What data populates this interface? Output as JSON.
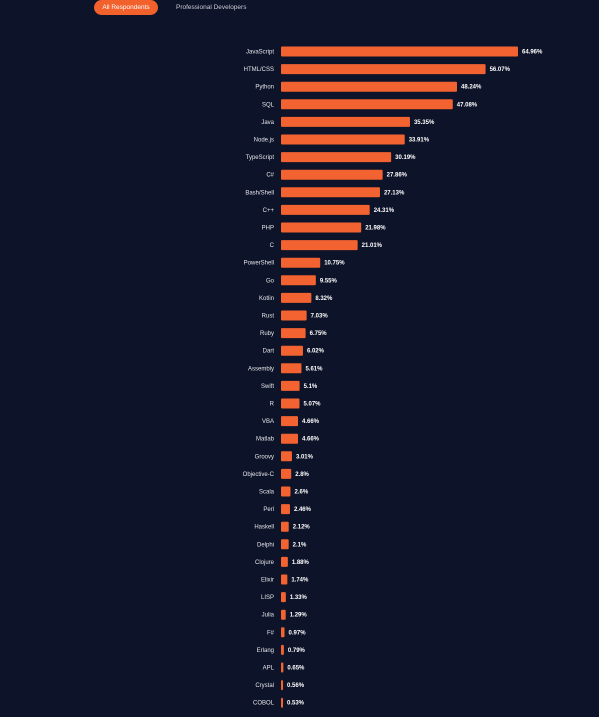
{
  "tabs": {
    "all_label": "All Respondents",
    "pro_label": "Professional Developers"
  },
  "colors": {
    "background": "#0d1328",
    "bar": "#f26331",
    "active_tab": "#f2602b"
  },
  "chart_data": {
    "type": "bar",
    "orientation": "horizontal",
    "xlim": [
      0,
      65
    ],
    "categories": [
      "JavaScript",
      "HTML/CSS",
      "Python",
      "SQL",
      "Java",
      "Node.js",
      "TypeScript",
      "C#",
      "Bash/Shell",
      "C++",
      "PHP",
      "C",
      "PowerShell",
      "Go",
      "Kotlin",
      "Rust",
      "Ruby",
      "Dart",
      "Assembly",
      "Swift",
      "R",
      "VBA",
      "Matlab",
      "Groovy",
      "Objective-C",
      "Scala",
      "Perl",
      "Haskell",
      "Delphi",
      "Clojure",
      "Elixir",
      "LISP",
      "Julia",
      "F#",
      "Erlang",
      "APL",
      "Crystal",
      "COBOL"
    ],
    "values": [
      64.96,
      56.07,
      48.24,
      47.08,
      35.35,
      33.91,
      30.19,
      27.86,
      27.13,
      24.31,
      21.98,
      21.01,
      10.75,
      9.55,
      8.32,
      7.03,
      6.75,
      6.02,
      5.61,
      5.1,
      5.07,
      4.66,
      4.66,
      3.01,
      2.8,
      2.6,
      2.46,
      2.12,
      2.1,
      1.88,
      1.74,
      1.33,
      1.29,
      0.97,
      0.79,
      0.65,
      0.56,
      0.53
    ],
    "value_labels": [
      "64.96%",
      "56.07%",
      "48.24%",
      "47.08%",
      "35.35%",
      "33.91%",
      "30.19%",
      "27.86%",
      "27.13%",
      "24.31%",
      "21.98%",
      "21.01%",
      "10.75%",
      "9.55%",
      "8.32%",
      "7.03%",
      "6.75%",
      "6.02%",
      "5.61%",
      "5.1%",
      "5.07%",
      "4.66%",
      "4.66%",
      "3.01%",
      "2.8%",
      "2.6%",
      "2.46%",
      "2.12%",
      "2.1%",
      "1.88%",
      "1.74%",
      "1.33%",
      "1.29%",
      "0.97%",
      "0.79%",
      "0.65%",
      "0.56%",
      "0.53%"
    ]
  }
}
